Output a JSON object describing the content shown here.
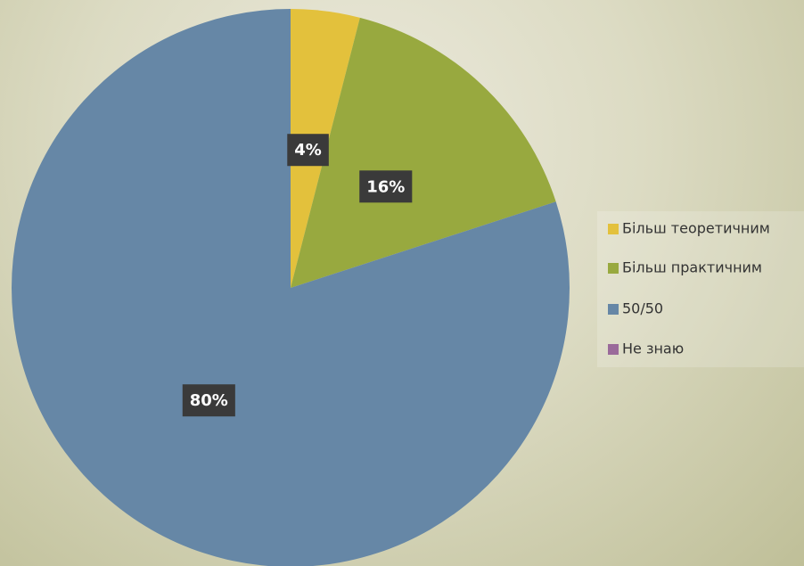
{
  "chart_data": {
    "type": "pie",
    "categories": [
      "Більш теоретичним",
      "Більш практичним",
      "50/50",
      "Не знаю"
    ],
    "values": [
      4,
      16,
      80,
      0
    ],
    "value_labels": [
      "4%",
      "16%",
      "80%",
      null
    ],
    "colors": [
      "#e3c13c",
      "#98a93f",
      "#6687a6",
      "#9a6a9a"
    ],
    "legend": "right"
  }
}
